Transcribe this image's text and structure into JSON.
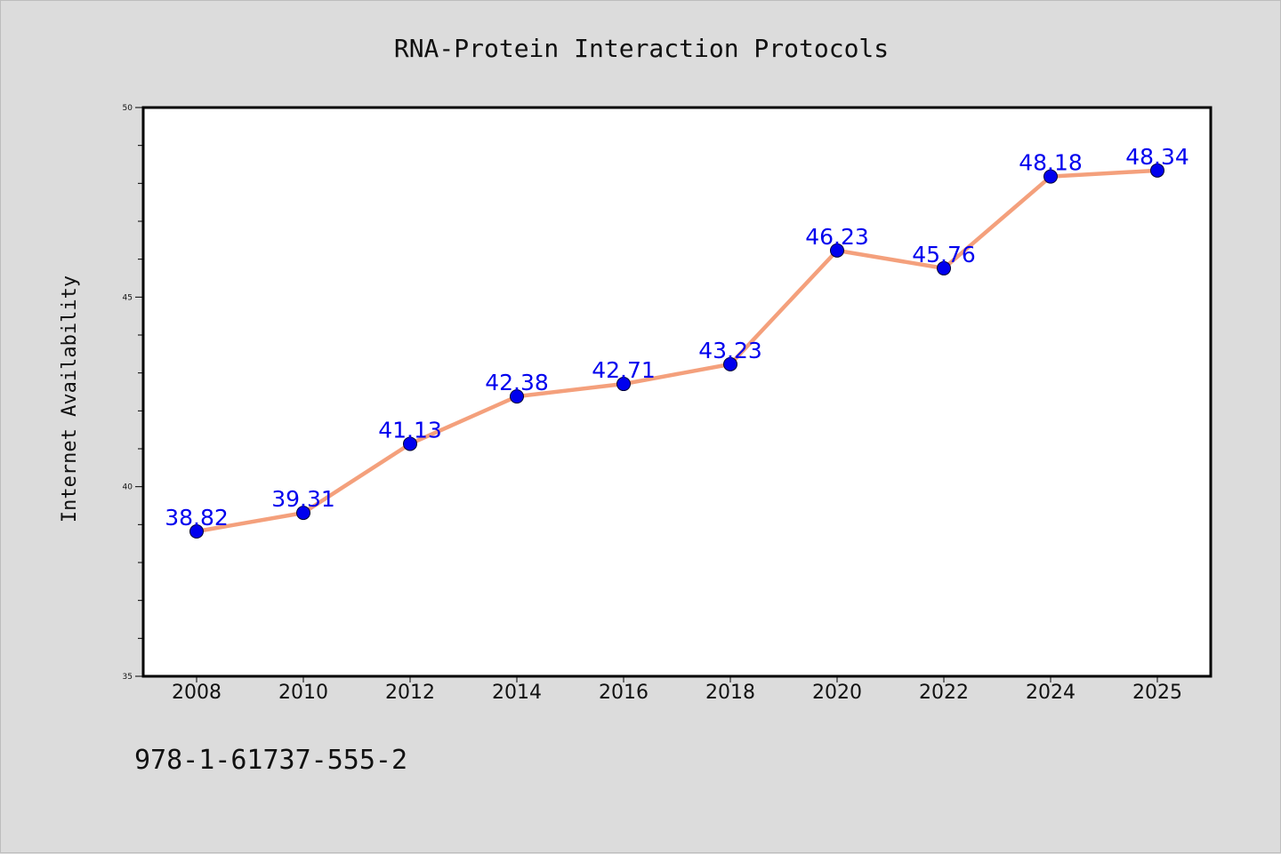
{
  "chart_data": {
    "type": "line",
    "title": "RNA-Protein Interaction Protocols",
    "xlabel": "",
    "ylabel": "Internet Availability",
    "categories": [
      "2008",
      "2010",
      "2012",
      "2014",
      "2016",
      "2018",
      "2020",
      "2022",
      "2024",
      "2025"
    ],
    "series": [
      {
        "values": [
          38.82,
          39.31,
          41.13,
          42.38,
          42.71,
          43.23,
          46.23,
          45.76,
          48.18,
          48.34
        ],
        "line_color": "#f4a07c",
        "marker_color": "#0000ee",
        "label_color": "#0000ee"
      }
    ],
    "data_labels": [
      "38.82",
      "39.31",
      "41.13",
      "42.38",
      "42.71",
      "43.23",
      "46.23",
      "45.76",
      "48.18",
      "48.34"
    ],
    "ylim": [
      35,
      50
    ],
    "yticks": [
      "35",
      "40",
      "45",
      "50"
    ],
    "grid": false,
    "legend": "none",
    "plot_background": "#ffffff",
    "figure_background": "#dcdcdc"
  },
  "footer": {
    "isbn": "978-1-61737-555-2"
  }
}
